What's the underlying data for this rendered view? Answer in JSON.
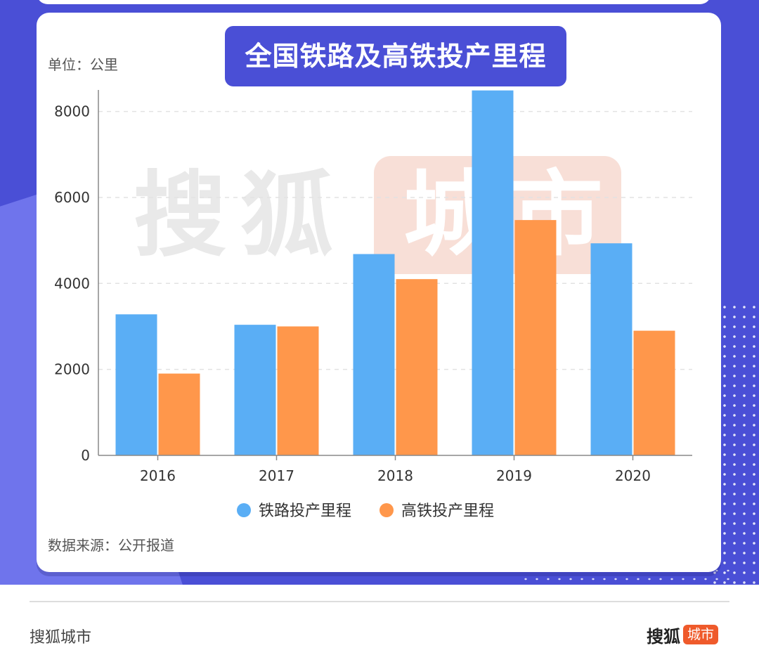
{
  "chart_data": {
    "type": "bar",
    "title": "全国铁路及高铁投产里程",
    "unit_label": "单位：公里",
    "source_label": "数据来源：公开报道",
    "categories": [
      "2016",
      "2017",
      "2018",
      "2019",
      "2020"
    ],
    "series": [
      {
        "name": "铁路投产里程",
        "color": "#5aaef5",
        "values": [
          3281,
          3038,
          4683,
          8489,
          4933
        ]
      },
      {
        "name": "高铁投产里程",
        "color": "#ff974b",
        "values": [
          1903,
          3000,
          4100,
          5474,
          2900
        ]
      }
    ],
    "yticks": [
      0,
      2000,
      4000,
      6000,
      8000
    ],
    "ylim": [
      0,
      8500
    ],
    "grid": true,
    "legend_position": "bottom"
  },
  "watermark": {
    "text_left": "搜狐",
    "text_right": "城市"
  },
  "footer": {
    "left_text": "搜狐城市",
    "logo_main": "搜狐",
    "logo_badge": "城市"
  }
}
